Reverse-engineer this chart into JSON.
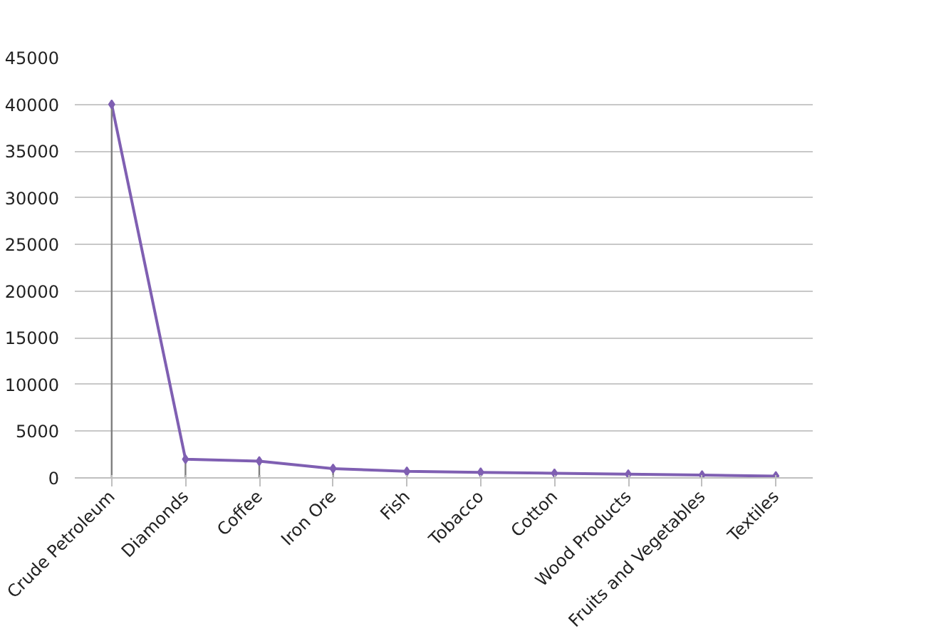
{
  "chart_data": {
    "type": "line",
    "categories": [
      "Crude Petroleum",
      "Diamonds",
      "Coffee",
      "Iron Ore",
      "Fish",
      "Tobacco",
      "Cotton",
      "Wood Products",
      "Fruits and Vegetables",
      "Textiles"
    ],
    "series": [
      {
        "color": "#7f5fb2",
        "marker": "none",
        "values": [
          40000,
          2000,
          1800,
          1000,
          700,
          600,
          500,
          400,
          300,
          200
        ]
      },
      {
        "type": "lollipop",
        "color": "#7f5fb2",
        "marker": "diamond",
        "values": [
          40000,
          2000,
          1800,
          1000,
          700,
          600,
          500,
          400,
          300,
          200
        ]
      }
    ],
    "ylim": [
      0,
      45000
    ],
    "yticks": [
      0,
      5000,
      10000,
      15000,
      20000,
      25000,
      30000,
      35000,
      40000,
      45000
    ],
    "grid": "y",
    "line_style": "solid"
  }
}
